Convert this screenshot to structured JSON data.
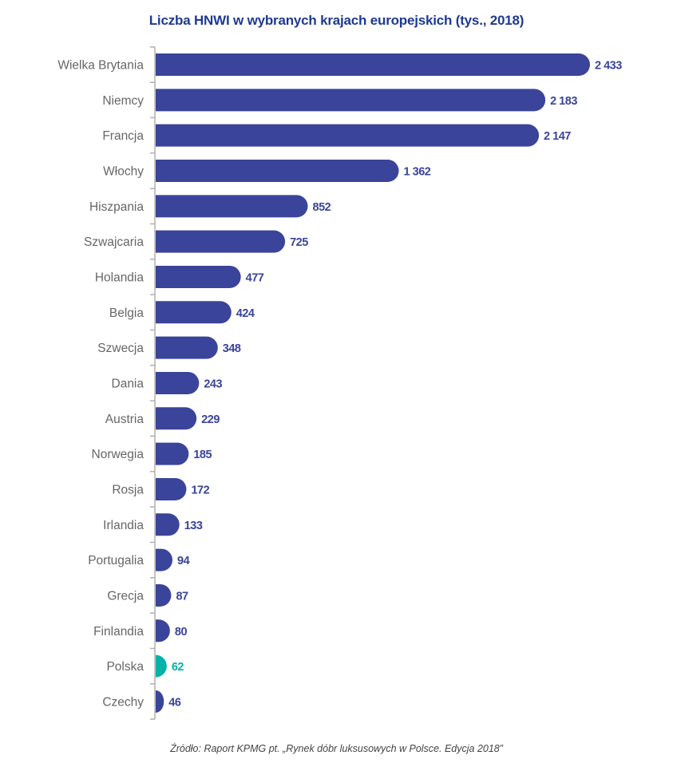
{
  "chart_data": {
    "type": "bar",
    "orientation": "horizontal",
    "title": "Liczba HNWI w wybranych krajach europejskich (tys., 2018)",
    "categories": [
      "Wielka Brytania",
      "Niemcy",
      "Francja",
      "Włochy",
      "Hiszpania",
      "Szwajcaria",
      "Holandia",
      "Belgia",
      "Szwecja",
      "Dania",
      "Austria",
      "Norwegia",
      "Rosja",
      "Irlandia",
      "Portugalia",
      "Grecja",
      "Finlandia",
      "Polska",
      "Czechy"
    ],
    "values": [
      2433,
      2183,
      2147,
      1362,
      852,
      725,
      477,
      424,
      348,
      243,
      229,
      185,
      172,
      133,
      94,
      87,
      80,
      62,
      46
    ],
    "data_labels": [
      "2 433",
      "2 183",
      "2 147",
      "1 362",
      "852",
      "725",
      "477",
      "424",
      "348",
      "243",
      "229",
      "185",
      "172",
      "133",
      "94",
      "87",
      "80",
      "62",
      "46"
    ],
    "highlight": "Polska",
    "colors": {
      "bar": "#3a449a",
      "highlight": "#00b2a9",
      "title": "#1e3a8f",
      "label": "#666666",
      "axis": "#b0b0b0"
    },
    "xlim": [
      0,
      2433
    ],
    "grid": false,
    "legend": "none",
    "source": "Źródło: Raport KPMG pt. „Rynek dóbr luksusowych w Polsce. Edycja 2018”"
  }
}
